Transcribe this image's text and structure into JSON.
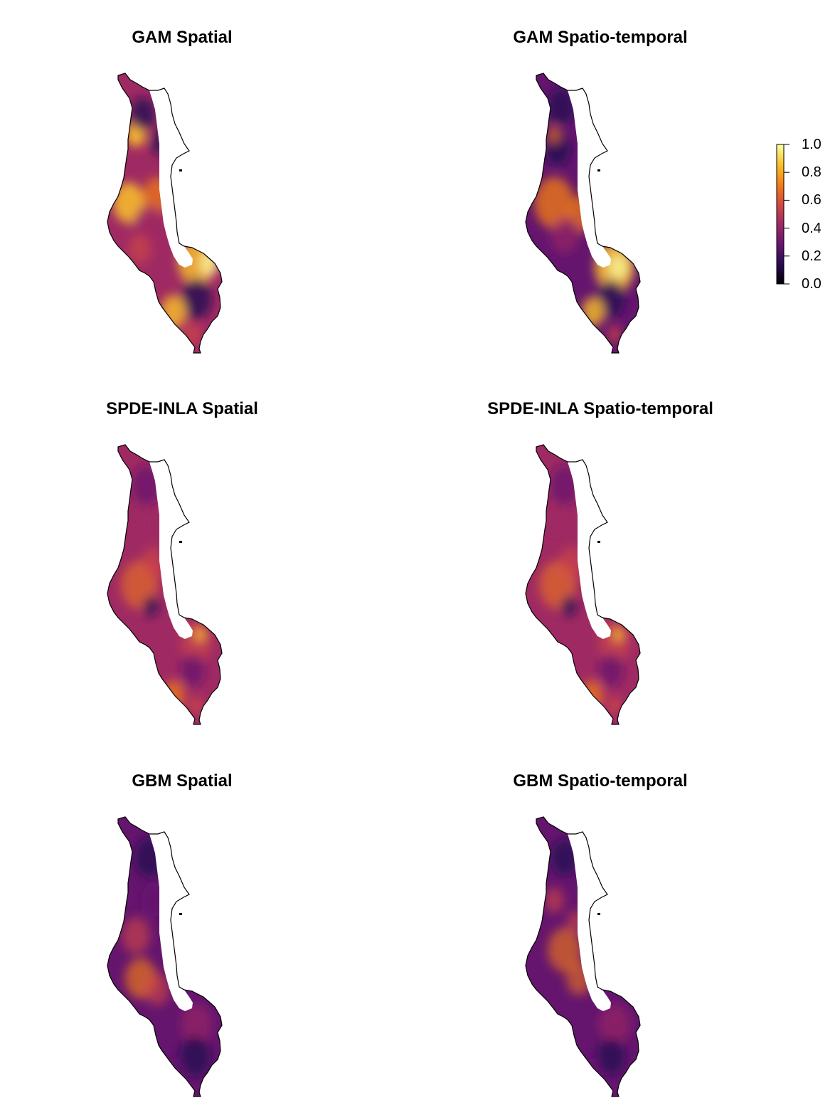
{
  "panels": [
    {
      "title": "GAM Spatial",
      "pattern": "gam_spatial"
    },
    {
      "title": "GAM Spatio-temporal",
      "pattern": "gam_st"
    },
    {
      "title": "SPDE-INLA Spatial",
      "pattern": "spde"
    },
    {
      "title": "SPDE-INLA Spatio-temporal",
      "pattern": "spde"
    },
    {
      "title": "GBM Spatial",
      "pattern": "gbm_spatial"
    },
    {
      "title": "GBM Spatio-temporal",
      "pattern": "gbm_st"
    }
  ],
  "legend": {
    "ticks": [
      "1.0",
      "0.8",
      "0.6",
      "0.4",
      "0.2",
      "0.0"
    ],
    "tick_values": [
      1.0,
      0.8,
      0.6,
      0.4,
      0.2,
      0.0
    ],
    "range": [
      0,
      1
    ],
    "colormap": "inferno"
  },
  "colors": {
    "c0": "#000004",
    "c1": "#280b54",
    "c2": "#65156e",
    "c3": "#9f2a63",
    "c4": "#d44842",
    "c5": "#f57d15",
    "c6": "#fac228",
    "c7": "#fcffa4",
    "outline": "#000000"
  }
}
